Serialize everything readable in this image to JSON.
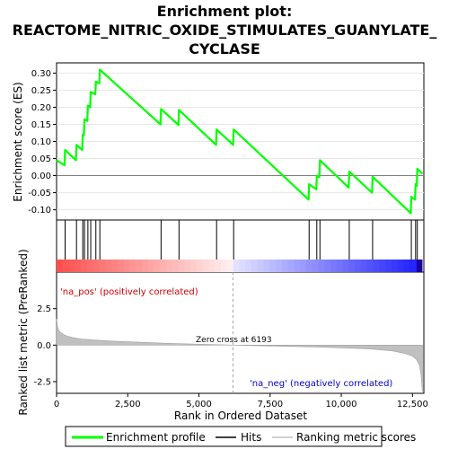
{
  "chart_data": [
    {
      "type": "line",
      "panel": "enrichment-score",
      "title_lines": [
        "Enrichment plot:",
        "REACTOME_NITRIC_OXIDE_STIMULATES_GUANYLATE_",
        "CYCLASE"
      ],
      "xlabel": "",
      "ylabel": "Enrichment score (ES)",
      "xlim": [
        0,
        12900
      ],
      "ylim": [
        -0.13,
        0.33
      ],
      "yticks": [
        0.3,
        0.25,
        0.2,
        0.15,
        0.1,
        0.05,
        0.0,
        -0.05,
        -0.1
      ],
      "ytick_labels": [
        "0.30",
        "0.25",
        "0.20",
        "0.15",
        "0.10",
        "0.05",
        "0.00",
        "-0.05",
        "-0.10"
      ],
      "color": "#00ff00",
      "series": [
        {
          "name": "Enrichment profile",
          "x": [
            0,
            280,
            300,
            680,
            700,
            900,
            920,
            960,
            980,
            1080,
            1100,
            1180,
            1200,
            1360,
            1380,
            1500,
            1520,
            3650,
            3670,
            4280,
            4300,
            5600,
            5620,
            6200,
            6220,
            8850,
            8870,
            9120,
            9140,
            9230,
            9250,
            10260,
            10280,
            11080,
            11100,
            12440,
            12460,
            12590,
            12610,
            12650,
            12670,
            12850
          ],
          "y": [
            0.045,
            0.03,
            0.075,
            0.045,
            0.09,
            0.075,
            0.12,
            0.118,
            0.165,
            0.16,
            0.205,
            0.2,
            0.245,
            0.238,
            0.275,
            0.27,
            0.31,
            0.15,
            0.195,
            0.148,
            0.192,
            0.09,
            0.135,
            0.09,
            0.135,
            -0.07,
            -0.025,
            -0.04,
            0.0,
            -0.005,
            0.045,
            -0.035,
            0.012,
            -0.05,
            -0.003,
            -0.11,
            -0.062,
            -0.07,
            -0.025,
            -0.03,
            0.02,
            0.005
          ]
        }
      ],
      "hits": [
        300,
        700,
        920,
        980,
        1100,
        1200,
        1380,
        1520,
        3670,
        4300,
        5620,
        6220,
        8870,
        9140,
        9250,
        10280,
        11100,
        12460,
        12610,
        12670
      ]
    },
    {
      "type": "area",
      "panel": "ranked-list-metric",
      "xlabel": "Rank in Ordered Dataset",
      "ylabel": "Ranked list metric (PreRanked)",
      "xlim": [
        0,
        12900
      ],
      "ylim": [
        -3.3,
        5.0
      ],
      "xticks": [
        0,
        2500,
        5000,
        7500,
        10000,
        12500
      ],
      "xtick_labels": [
        "0",
        "2,500",
        "5,000",
        "7,500",
        "10,000",
        "12,500"
      ],
      "yticks": [
        -2.5,
        0.0,
        2.5
      ],
      "ytick_labels": [
        "-2.5",
        "0.0",
        "2.5"
      ],
      "zero_cross_label": "Zero cross at 6193",
      "zero_cross": 6193,
      "pos_label": "'na_pos' (positively correlated)",
      "neg_label": "'na_neg' (negatively correlated)",
      "color": "#c0c0c0",
      "series": [
        {
          "name": "Ranking metric scores",
          "x": [
            0,
            30,
            80,
            150,
            250,
            400,
            600,
            900,
            1300,
            2000,
            3000,
            4000,
            5000,
            6193,
            7500,
            9000,
            10000,
            11000,
            11800,
            12200,
            12500,
            12650,
            12750,
            12800,
            12850
          ],
          "y": [
            1.8,
            1.3,
            1.0,
            0.85,
            0.72,
            0.6,
            0.5,
            0.42,
            0.35,
            0.27,
            0.19,
            0.12,
            0.06,
            0.0,
            -0.06,
            -0.12,
            -0.18,
            -0.26,
            -0.4,
            -0.55,
            -0.75,
            -1.0,
            -1.4,
            -2.0,
            -3.2
          ]
        }
      ]
    }
  ],
  "legend": {
    "items": [
      {
        "label": "Enrichment profile",
        "color": "#00ff00"
      },
      {
        "label": "Hits",
        "color": "#000000"
      },
      {
        "label": "Ranking metric scores",
        "color": "#c0c0c0"
      }
    ]
  }
}
